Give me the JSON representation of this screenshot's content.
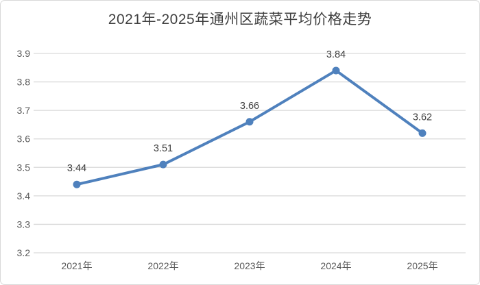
{
  "chart_data": {
    "type": "line",
    "title": "2021年-2025年通州区蔬菜平均价格走势",
    "categories": [
      "2021年",
      "2022年",
      "2023年",
      "2024年",
      "2025年"
    ],
    "series": [
      {
        "name": "蔬菜平均价格",
        "values": [
          3.44,
          3.51,
          3.66,
          3.84,
          3.62
        ],
        "data_labels": [
          "3.44",
          "3.51",
          "3.66",
          "3.84",
          "3.62"
        ]
      }
    ],
    "xlabel": "",
    "ylabel": "",
    "ylim": [
      3.2,
      3.9
    ],
    "ytick_step": 0.1,
    "yticks": [
      "3.2",
      "3.3",
      "3.4",
      "3.5",
      "3.6",
      "3.7",
      "3.8",
      "3.9"
    ],
    "grid": "horizontal-only",
    "legend": "none",
    "colors": {
      "line": "#4F81BD",
      "marker": "#4F81BD",
      "gridline": "#D9D9D9",
      "axis_label": "#595959",
      "data_label": "#404040",
      "title": "#3F3F3F",
      "background": "#FFFFFF",
      "border": "#D8D8D8"
    }
  }
}
